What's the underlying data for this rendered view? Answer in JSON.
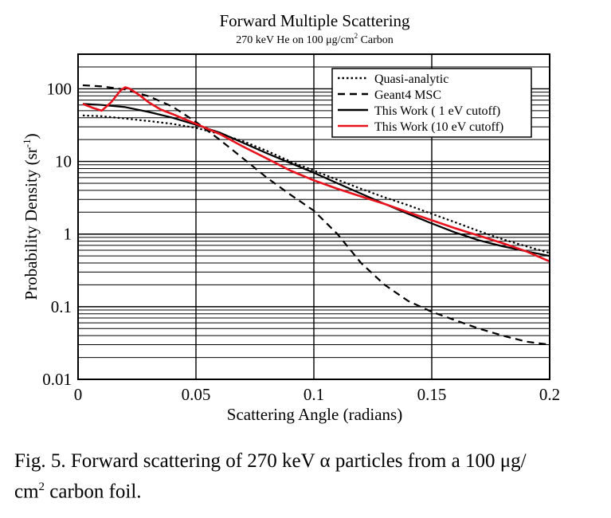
{
  "chart_data": {
    "type": "line",
    "title": "Forward Multiple Scattering",
    "subtitle": "270 keV He on 100 μg/cm² Carbon",
    "subtitle_parts": {
      "a": "270 keV He on 100 μg/cm",
      "sup": "2",
      "b": " Carbon"
    },
    "xlabel": "Scattering Angle (radians)",
    "ylabel": "Probability Density (sr-1)",
    "ylabel_parts": {
      "a": "Probability Density (sr",
      "sup": "-1",
      "b": ")"
    },
    "xlim": [
      0,
      0.2
    ],
    "ylim": [
      0.01,
      300
    ],
    "yscale": "log",
    "grid": true,
    "legend_position": "top-right",
    "x_ticks": [
      0,
      0.05,
      0.1,
      0.15,
      0.2
    ],
    "x_tick_labels": [
      "0",
      "0.05",
      "0.1",
      "0.15",
      "0.2"
    ],
    "y_ticks": [
      0.01,
      0.1,
      1,
      10,
      100
    ],
    "y_tick_labels": [
      "0.01",
      "0.1",
      "1",
      "10",
      "100"
    ],
    "series": [
      {
        "name": "Quasi-analytic",
        "color": "#000000",
        "dash": "dotted",
        "x": [
          0.002,
          0.01,
          0.02,
          0.03,
          0.04,
          0.05,
          0.06,
          0.07,
          0.08,
          0.09,
          0.1,
          0.11,
          0.12,
          0.13,
          0.14,
          0.15,
          0.16,
          0.17,
          0.18,
          0.19,
          0.2
        ],
        "y": [
          43,
          42,
          39,
          36,
          33,
          29,
          24,
          19,
          14,
          10,
          7.5,
          5.6,
          4.2,
          3.2,
          2.5,
          1.9,
          1.45,
          1.1,
          0.85,
          0.68,
          0.55
        ]
      },
      {
        "name": "Geant4 MSC",
        "color": "#000000",
        "dash": "dashed",
        "x": [
          0.002,
          0.01,
          0.02,
          0.03,
          0.04,
          0.05,
          0.06,
          0.07,
          0.08,
          0.09,
          0.1,
          0.11,
          0.12,
          0.13,
          0.14,
          0.15,
          0.16,
          0.17,
          0.18,
          0.19,
          0.2
        ],
        "y": [
          112,
          108,
          98,
          79,
          57,
          35,
          20,
          11,
          6,
          3.5,
          2.1,
          1.0,
          0.4,
          0.2,
          0.12,
          0.085,
          0.065,
          0.05,
          0.04,
          0.033,
          0.03
        ]
      },
      {
        "name": "This Work ( 1 eV cutoff)",
        "color": "#000000",
        "dash": "solid",
        "x": [
          0.002,
          0.01,
          0.02,
          0.03,
          0.04,
          0.05,
          0.06,
          0.07,
          0.08,
          0.09,
          0.1,
          0.11,
          0.12,
          0.13,
          0.14,
          0.15,
          0.16,
          0.17,
          0.18,
          0.19,
          0.2
        ],
        "y": [
          62,
          60,
          56,
          48,
          40,
          32,
          25,
          18,
          13,
          9.5,
          7,
          5.0,
          3.6,
          2.6,
          1.9,
          1.4,
          1.05,
          0.82,
          0.68,
          0.58,
          0.5
        ]
      },
      {
        "name": "This Work (10 eV cutoff)",
        "color": "#e8121c",
        "dash": "solid",
        "x": [
          0.002,
          0.006,
          0.01,
          0.014,
          0.018,
          0.02,
          0.022,
          0.026,
          0.03,
          0.035,
          0.04,
          0.05,
          0.06,
          0.07,
          0.08,
          0.09,
          0.1,
          0.11,
          0.12,
          0.13,
          0.14,
          0.15,
          0.16,
          0.17,
          0.18,
          0.19,
          0.2
        ],
        "y": [
          62,
          55,
          50,
          65,
          95,
          105,
          100,
          82,
          65,
          52,
          45,
          33,
          24,
          16,
          11,
          7.5,
          5.5,
          4.2,
          3.3,
          2.6,
          2.0,
          1.55,
          1.2,
          0.95,
          0.75,
          0.58,
          0.42
        ]
      }
    ]
  },
  "caption": {
    "line1": "Fig. 5.  Forward scattering of 270 keV α particles from a 100 μg/",
    "cm": "cm",
    "sup": "2",
    "rest": " carbon foil."
  }
}
